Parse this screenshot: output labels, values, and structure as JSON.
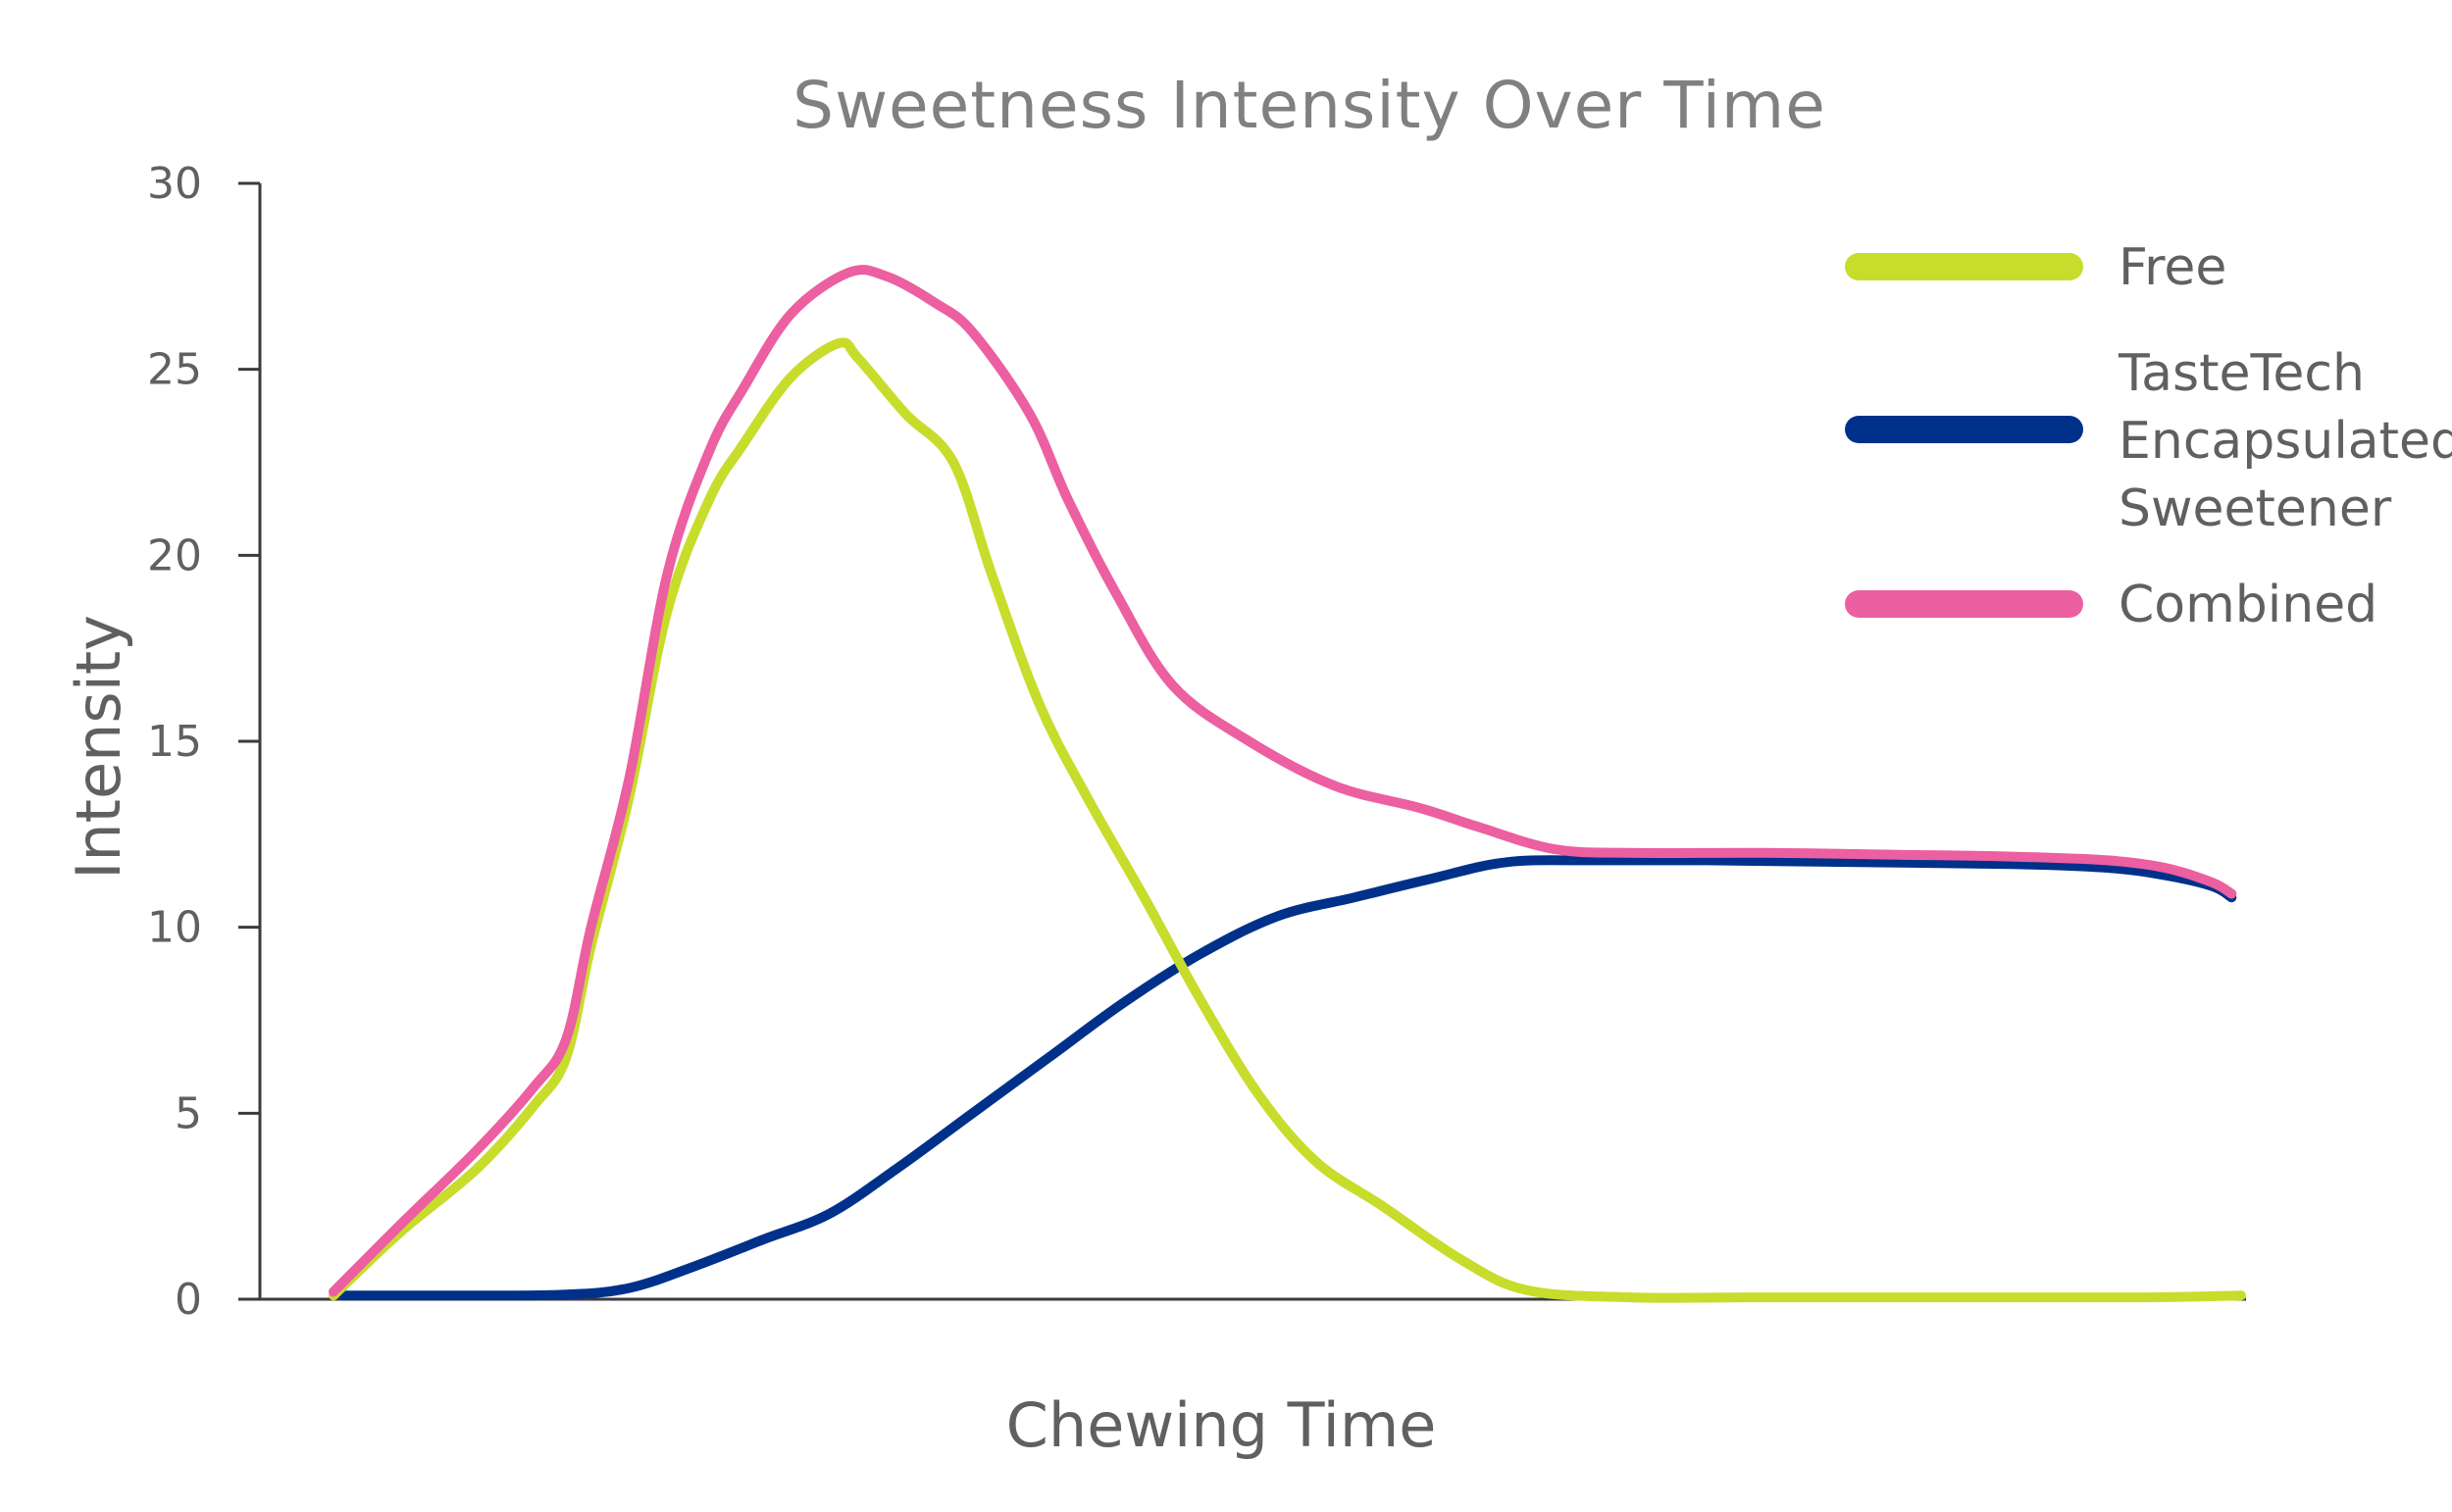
{
  "chart_data": {
    "type": "line",
    "title": "Sweetness Intensity Over Time",
    "xlabel": "Chewing Time",
    "ylabel": "Intensity",
    "ylim": [
      0,
      30
    ],
    "xlim": [
      0,
      100
    ],
    "yticks": [
      0,
      5,
      10,
      15,
      20,
      25,
      30
    ],
    "grid": false,
    "legend_position": "top-right",
    "series": [
      {
        "name": "Free",
        "color": "#c8dc2c",
        "points": [
          [
            0,
            0.1
          ],
          [
            3.5,
            1.8
          ],
          [
            7.5,
            3.5
          ],
          [
            10.5,
            5.2
          ],
          [
            12.2,
            6.5
          ],
          [
            13.5,
            9.5
          ],
          [
            15.5,
            13.5
          ],
          [
            17.5,
            18.5
          ],
          [
            19.7,
            21.5
          ],
          [
            21.5,
            23
          ],
          [
            24,
            24.8
          ],
          [
            26.5,
            25.7
          ],
          [
            27.5,
            25.3
          ],
          [
            30,
            23.8
          ],
          [
            32.5,
            22.5
          ],
          [
            34.5,
            19.5
          ],
          [
            37,
            16
          ],
          [
            39.5,
            13.5
          ],
          [
            42.5,
            10.8
          ],
          [
            45.5,
            8
          ],
          [
            48.5,
            5.5
          ],
          [
            51.5,
            3.7
          ],
          [
            55,
            2.5
          ],
          [
            59,
            1.1
          ],
          [
            62.5,
            0.25
          ],
          [
            68,
            0.05
          ],
          [
            75,
            0.05
          ],
          [
            85,
            0.05
          ],
          [
            95,
            0.05
          ],
          [
            100,
            0.1
          ]
        ]
      },
      {
        "name": "TasteTech Encapsulated Sweetener",
        "color": "#00318a",
        "points": [
          [
            0.5,
            0.1
          ],
          [
            7,
            0.1
          ],
          [
            12,
            0.12
          ],
          [
            15.5,
            0.3
          ],
          [
            19,
            0.9
          ],
          [
            22.5,
            1.6
          ],
          [
            26,
            2.3
          ],
          [
            29.5,
            3.5
          ],
          [
            33.5,
            5
          ],
          [
            37.5,
            6.5
          ],
          [
            41.5,
            8
          ],
          [
            45.5,
            9.3
          ],
          [
            49.5,
            10.3
          ],
          [
            53.5,
            10.8
          ],
          [
            57.5,
            11.3
          ],
          [
            61.5,
            11.75
          ],
          [
            66,
            11.8
          ],
          [
            72,
            11.8
          ],
          [
            80,
            11.75
          ],
          [
            88,
            11.7
          ],
          [
            93,
            11.6
          ],
          [
            96,
            11.4
          ],
          [
            98.5,
            11.1
          ],
          [
            99.5,
            10.8
          ]
        ]
      },
      {
        "name": "Combined",
        "color": "#ec5fa1",
        "points": [
          [
            0,
            0.2
          ],
          [
            3.5,
            2
          ],
          [
            7.5,
            4
          ],
          [
            10.5,
            5.7
          ],
          [
            12.2,
            7
          ],
          [
            13.5,
            10
          ],
          [
            15.5,
            14
          ],
          [
            17.5,
            19.5
          ],
          [
            19.7,
            22.8
          ],
          [
            21.5,
            24.5
          ],
          [
            24,
            26.5
          ],
          [
            27,
            27.6
          ],
          [
            29,
            27.5
          ],
          [
            31.5,
            26.8
          ],
          [
            33.5,
            26
          ],
          [
            36.5,
            23.8
          ],
          [
            38.5,
            21.5
          ],
          [
            41,
            19
          ],
          [
            44,
            16.5
          ],
          [
            48,
            15
          ],
          [
            52.5,
            13.8
          ],
          [
            57,
            13.2
          ],
          [
            60,
            12.7
          ],
          [
            64,
            12.1
          ],
          [
            68,
            12
          ],
          [
            75,
            12
          ],
          [
            82,
            11.95
          ],
          [
            88,
            11.9
          ],
          [
            93,
            11.8
          ],
          [
            96,
            11.6
          ],
          [
            98.5,
            11.2
          ],
          [
            99.5,
            10.9
          ]
        ]
      }
    ]
  }
}
